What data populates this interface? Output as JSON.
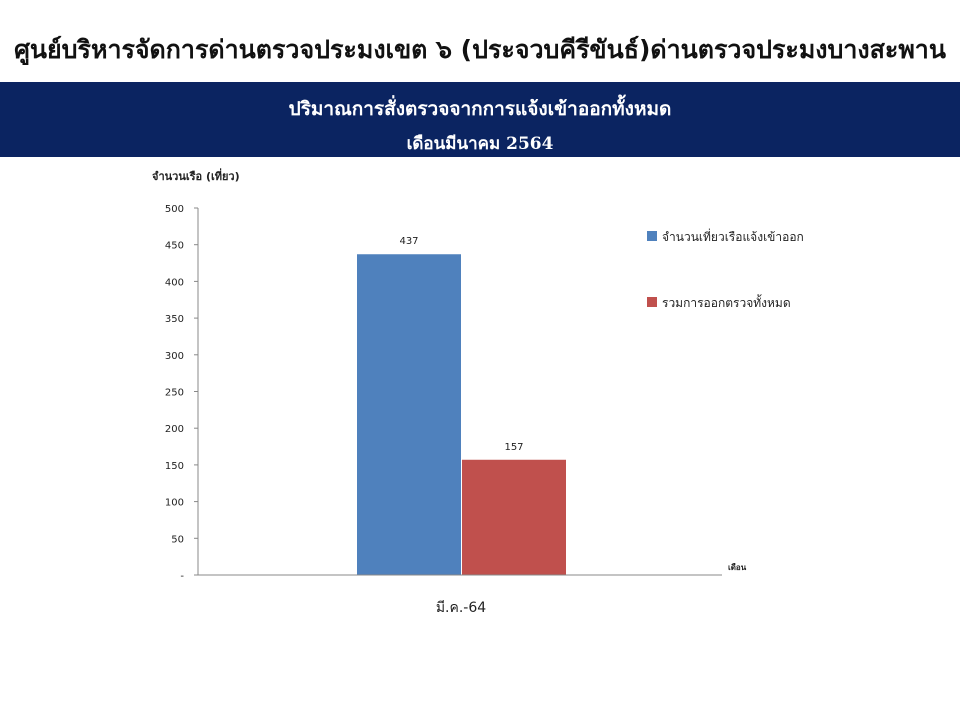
{
  "header": {
    "title": "ศูนย์บริหารจัดการด่านตรวจประมงเขต  ๖ (ประจวบคีรีขันธ์)ด่านตรวจประมงบางสะพาน"
  },
  "chart_data": {
    "type": "bar",
    "title": "ปริมาณการสั่งตรวจจากการแจ้งเข้าออกทั้งหมด",
    "subtitle": "เดือนมีนาคม 2564",
    "ylabel": "จำนวนเรือ (เที่ยว)",
    "xlabel": "เดือน",
    "categories": [
      "มี.ค.-64"
    ],
    "ylim": [
      0,
      500
    ],
    "yticks": [
      "-",
      "50",
      "100",
      "150",
      "200",
      "250",
      "300",
      "350",
      "400",
      "450",
      "500"
    ],
    "legend_position": "right",
    "grid": false,
    "series": [
      {
        "name": "จำนวนเที่ยวเรือแจ้งเข้าออก",
        "values": [
          437
        ],
        "color": "#4f81bd"
      },
      {
        "name": "รวมการออกตรวจทั้งหมด",
        "values": [
          157
        ],
        "color": "#c0504d"
      }
    ]
  }
}
